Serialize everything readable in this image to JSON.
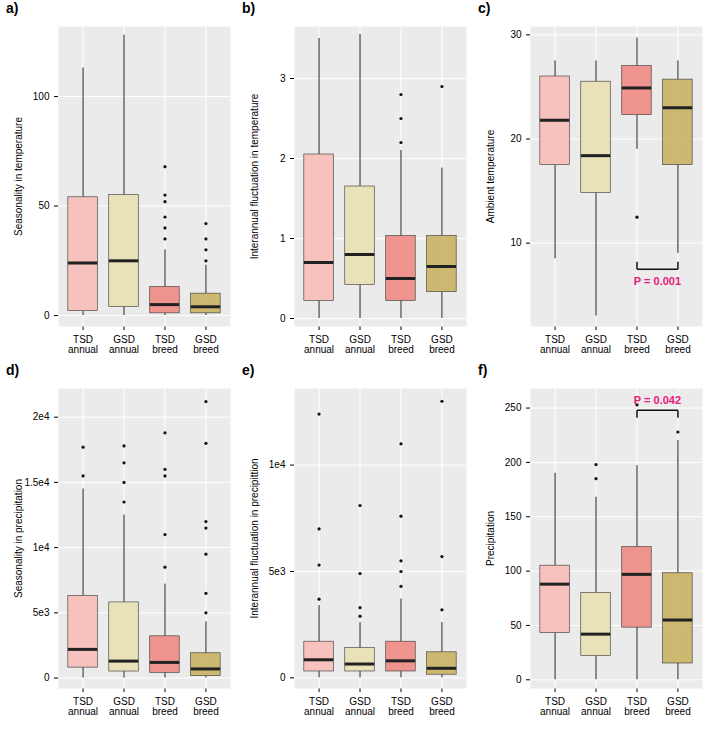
{
  "chart_data": [
    {
      "type": "box",
      "title": "a)",
      "y_label": "Seasonality in temperature",
      "categories": [
        "TSD\nannual",
        "GSD\nannual",
        "TSD\nbreed",
        "GSD\nbreed"
      ],
      "colors": [
        "#f8bcb8",
        "#e9e1b4",
        "#f08a84",
        "#c9b263"
      ],
      "boxes": [
        {
          "min": 0,
          "q1": 2,
          "median": 24,
          "q3": 54,
          "max": 113,
          "outliers": []
        },
        {
          "min": 0,
          "q1": 4,
          "median": 25,
          "q3": 55,
          "max": 128,
          "outliers": []
        },
        {
          "min": 0,
          "q1": 1,
          "median": 5,
          "q3": 13,
          "max": 30,
          "outliers": [
            35,
            40,
            45,
            52,
            55,
            68
          ]
        },
        {
          "min": 0,
          "q1": 1,
          "median": 4,
          "q3": 10,
          "max": 23,
          "outliers": [
            25,
            30,
            35,
            42
          ]
        }
      ],
      "ylim": [
        -5,
        132
      ],
      "yticks": [
        0,
        50,
        100
      ],
      "grid": true,
      "annotations": []
    },
    {
      "type": "box",
      "title": "b)",
      "y_label": "Interannual fluctuation in temperature",
      "categories": [
        "TSD\nannual",
        "GSD\nannual",
        "TSD\nbreed",
        "GSD\nbreed"
      ],
      "colors": [
        "#f8bcb8",
        "#e9e1b4",
        "#f08a84",
        "#c9b263"
      ],
      "boxes": [
        {
          "min": 0,
          "q1": 0.22,
          "median": 0.7,
          "q3": 2.05,
          "max": 3.5,
          "outliers": []
        },
        {
          "min": 0,
          "q1": 0.42,
          "median": 0.8,
          "q3": 1.65,
          "max": 3.55,
          "outliers": []
        },
        {
          "min": 0,
          "q1": 0.22,
          "median": 0.5,
          "q3": 1.03,
          "max": 2.1,
          "outliers": [
            2.2,
            2.5,
            2.8
          ]
        },
        {
          "min": 0,
          "q1": 0.33,
          "median": 0.65,
          "q3": 1.03,
          "max": 1.88,
          "outliers": [
            2.9
          ]
        }
      ],
      "ylim": [
        -0.1,
        3.65
      ],
      "yticks": [
        0,
        1,
        2,
        3
      ],
      "grid": true,
      "annotations": []
    },
    {
      "type": "box",
      "title": "c)",
      "y_label": "Ambient temperature",
      "categories": [
        "TSD\nannual",
        "GSD\nannual",
        "TSD\nbreed",
        "GSD\nbreed"
      ],
      "colors": [
        "#f8bcb8",
        "#e9e1b4",
        "#f08a84",
        "#c9b263"
      ],
      "boxes": [
        {
          "min": 8.5,
          "q1": 17.5,
          "median": 21.8,
          "q3": 26,
          "max": 27.5,
          "outliers": []
        },
        {
          "min": 3,
          "q1": 14.8,
          "median": 18.4,
          "q3": 25.5,
          "max": 27.5,
          "outliers": []
        },
        {
          "min": 19,
          "q1": 22.3,
          "median": 24.9,
          "q3": 27,
          "max": 29.7,
          "outliers": [
            12.5
          ]
        },
        {
          "min": 9,
          "q1": 17.5,
          "median": 23,
          "q3": 25.7,
          "max": 27.5,
          "outliers": []
        }
      ],
      "ylim": [
        2,
        30.8
      ],
      "yticks": [
        10,
        20,
        30
      ],
      "grid": true,
      "annotations": [
        {
          "text": "P = 0.001",
          "between": [
            2,
            3
          ],
          "y": 7.5,
          "color": "#e8197a"
        }
      ]
    },
    {
      "type": "box",
      "title": "d)",
      "y_label": "Seasonality in precipitation",
      "categories": [
        "TSD\nannual",
        "GSD\nannual",
        "TSD\nbreed",
        "GSD\nbreed"
      ],
      "colors": [
        "#f8bcb8",
        "#e9e1b4",
        "#f08a84",
        "#c9b263"
      ],
      "boxes": [
        {
          "min": 0,
          "q1": 800,
          "median": 2200,
          "q3": 6300,
          "max": 14500,
          "outliers": [
            15500,
            17700
          ]
        },
        {
          "min": 0,
          "q1": 500,
          "median": 1300,
          "q3": 5800,
          "max": 12500,
          "outliers": [
            13500,
            15000,
            16500,
            17800
          ]
        },
        {
          "min": 0,
          "q1": 400,
          "median": 1200,
          "q3": 3200,
          "max": 7200,
          "outliers": [
            8500,
            11000,
            15500,
            16000,
            18800
          ]
        },
        {
          "min": 0,
          "q1": 150,
          "median": 700,
          "q3": 1900,
          "max": 4300,
          "outliers": [
            5000,
            6500,
            9500,
            11500,
            12000,
            18000,
            21200
          ]
        }
      ],
      "ylim": [
        -800,
        22200
      ],
      "yticks": [
        0,
        {
          "value": 5000,
          "label": "5e3"
        },
        {
          "value": 10000,
          "label": "1e4"
        },
        {
          "value": 15000,
          "label": "1.5e4"
        },
        {
          "value": 20000,
          "label": "2e4"
        }
      ],
      "grid": true,
      "annotations": []
    },
    {
      "type": "box",
      "title": "e)",
      "y_label": "Interannual fluctuation in precipittion",
      "categories": [
        "TSD\nannual",
        "GSD\nannual",
        "TSD\nbreed",
        "GSD\nbreed"
      ],
      "colors": [
        "#f8bcb8",
        "#e9e1b4",
        "#f08a84",
        "#c9b263"
      ],
      "boxes": [
        {
          "min": 0,
          "q1": 300,
          "median": 850,
          "q3": 1700,
          "max": 3400,
          "outliers": [
            3700,
            5300,
            7000,
            12400
          ]
        },
        {
          "min": 0,
          "q1": 300,
          "median": 650,
          "q3": 1400,
          "max": 2600,
          "outliers": [
            2900,
            3300,
            4900,
            8100
          ]
        },
        {
          "min": 0,
          "q1": 300,
          "median": 800,
          "q3": 1700,
          "max": 3700,
          "outliers": [
            4300,
            5000,
            5500,
            7600,
            11000
          ]
        },
        {
          "min": 0,
          "q1": 150,
          "median": 450,
          "q3": 1200,
          "max": 2600,
          "outliers": [
            3200,
            5700,
            13000
          ]
        }
      ],
      "ylim": [
        -500,
        13600
      ],
      "yticks": [
        0,
        {
          "value": 5000,
          "label": "5e3"
        },
        {
          "value": 10000,
          "label": "1e4"
        }
      ],
      "grid": true,
      "annotations": []
    },
    {
      "type": "box",
      "title": "f)",
      "y_label": "Precipitation",
      "categories": [
        "TSD\nannual",
        "GSD\nannual",
        "TSD\nbreed",
        "GSD\nbreed"
      ],
      "colors": [
        "#f8bcb8",
        "#e9e1b4",
        "#f08a84",
        "#c9b263"
      ],
      "boxes": [
        {
          "min": 0,
          "q1": 43,
          "median": 88,
          "q3": 105,
          "max": 190,
          "outliers": []
        },
        {
          "min": 0,
          "q1": 22,
          "median": 42,
          "q3": 80,
          "max": 168,
          "outliers": [
            185,
            198
          ]
        },
        {
          "min": 0,
          "q1": 48,
          "median": 97,
          "q3": 122,
          "max": 197,
          "outliers": [
            253
          ]
        },
        {
          "min": 0,
          "q1": 15,
          "median": 55,
          "q3": 98,
          "max": 220,
          "outliers": [
            228
          ]
        }
      ],
      "ylim": [
        -8,
        268
      ],
      "yticks": [
        0,
        50,
        100,
        150,
        200,
        250
      ],
      "grid": true,
      "annotations": [
        {
          "text": "P = 0.042",
          "between": [
            2,
            3
          ],
          "y": 248,
          "color": "#e8197a"
        }
      ]
    }
  ]
}
